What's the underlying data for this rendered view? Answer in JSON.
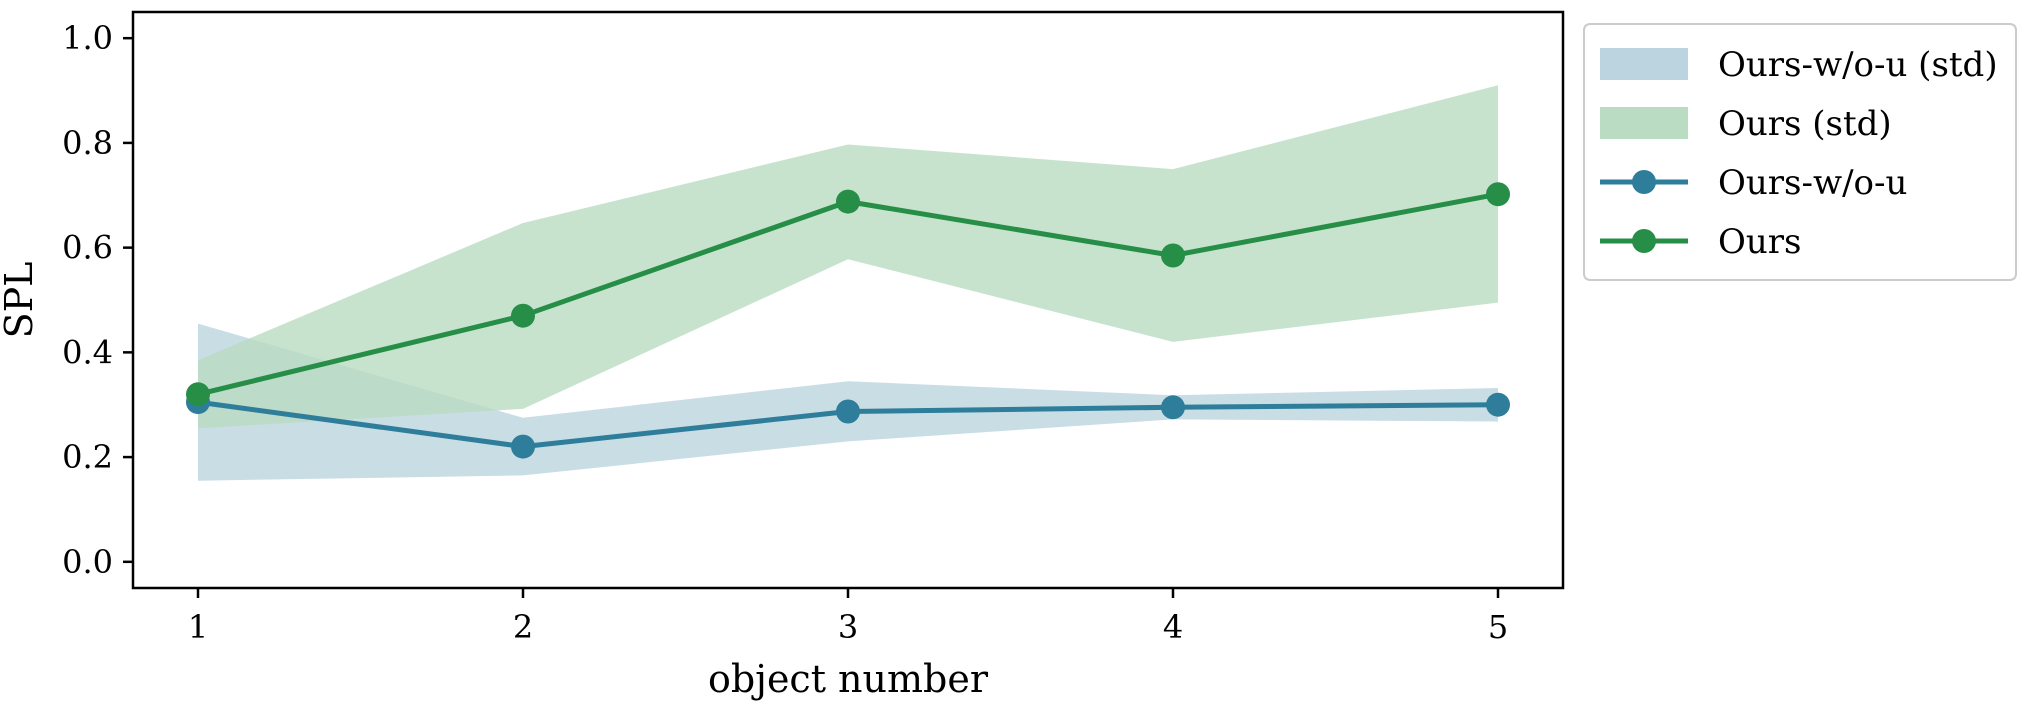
{
  "chart_data": {
    "type": "line",
    "xlabel": "object number",
    "ylabel": "SPL",
    "x": [
      1,
      2,
      3,
      4,
      5
    ],
    "x_ticks": [
      "1",
      "2",
      "3",
      "4",
      "5"
    ],
    "xlim": [
      0.8,
      5.2
    ],
    "ylim": [
      -0.05,
      1.05
    ],
    "y_ticks": [
      "0.0",
      "0.2",
      "0.4",
      "0.6",
      "0.8",
      "1.0"
    ],
    "grid": false,
    "legend_position": "outside-right-top",
    "series": [
      {
        "name": "Ours-w/o-u",
        "color": "#2e7d9a",
        "marker": "circle",
        "values": [
          0.305,
          0.22,
          0.287,
          0.295,
          0.3
        ],
        "band": {
          "name": "Ours-w/o-u (std)",
          "color": "#bcd4df",
          "upper": [
            0.455,
            0.275,
            0.345,
            0.318,
            0.332
          ],
          "lower": [
            0.155,
            0.165,
            0.23,
            0.272,
            0.268
          ]
        }
      },
      {
        "name": "Ours",
        "color": "#268e47",
        "marker": "circle",
        "values": [
          0.32,
          0.47,
          0.688,
          0.585,
          0.702
        ],
        "band": {
          "name": "Ours (std)",
          "color": "#b9dcc2",
          "upper": [
            0.385,
            0.647,
            0.797,
            0.75,
            0.91
          ],
          "lower": [
            0.255,
            0.292,
            0.578,
            0.42,
            0.495
          ]
        }
      }
    ],
    "legend": [
      {
        "label": "Ours-w/o-u (std)",
        "kind": "patch",
        "color": "#bcd4df"
      },
      {
        "label": "Ours (std)",
        "kind": "patch",
        "color": "#b9dcc2"
      },
      {
        "label": "Ours-w/o-u",
        "kind": "line",
        "color": "#2e7d9a"
      },
      {
        "label": "Ours",
        "kind": "line",
        "color": "#268e47"
      }
    ]
  }
}
